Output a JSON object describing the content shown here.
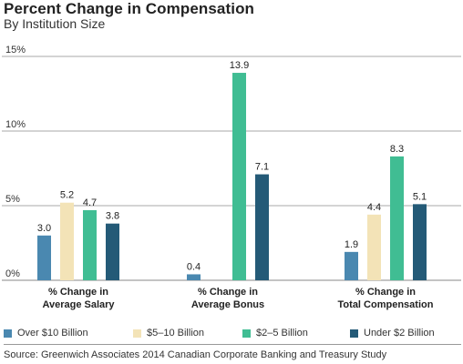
{
  "chart_data": {
    "type": "bar",
    "title": "Percent Change in Compensation",
    "subtitle": "By Institution Size",
    "categories": [
      [
        "% Change in",
        "Average Salary"
      ],
      [
        "% Change in",
        "Average Bonus"
      ],
      [
        "% Change in",
        "Total Compensation"
      ]
    ],
    "series": [
      {
        "name": "Over $10 Billion",
        "color": "#4a88b0",
        "values": [
          3.0,
          0.4,
          1.9
        ]
      },
      {
        "name": "$5–10 Billion",
        "color": "#f3e3b7",
        "values": [
          5.2,
          null,
          4.4
        ]
      },
      {
        "name": "$2–5 Billion",
        "color": "#40bd93",
        "values": [
          4.7,
          13.9,
          8.3
        ]
      },
      {
        "name": "Under $2 Billion",
        "color": "#245a77",
        "values": [
          3.8,
          7.1,
          5.1
        ]
      }
    ],
    "yticks": [
      "0%",
      "5%",
      "10%",
      "15%"
    ],
    "ylim": [
      0,
      15
    ],
    "grid": true,
    "legend_position": "bottom",
    "source": "Source: Greenwich Associates 2014 Canadian Corporate Banking and Treasury Study"
  }
}
